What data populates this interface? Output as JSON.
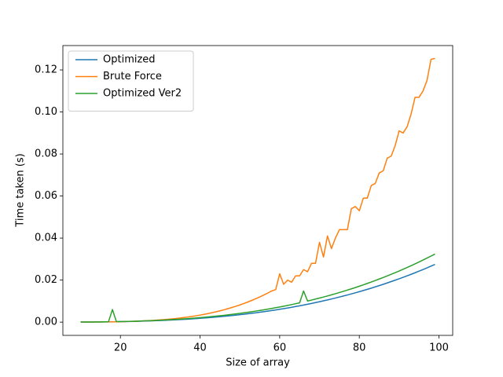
{
  "chart_data": {
    "type": "line",
    "x_label": "Size of array",
    "y_label": "Time taken (s)",
    "x": [
      10,
      11,
      12,
      13,
      14,
      15,
      16,
      17,
      18,
      19,
      20,
      21,
      22,
      23,
      24,
      25,
      26,
      27,
      28,
      29,
      30,
      31,
      32,
      33,
      34,
      35,
      36,
      37,
      38,
      39,
      40,
      41,
      42,
      43,
      44,
      45,
      46,
      47,
      48,
      49,
      50,
      51,
      52,
      53,
      54,
      55,
      56,
      57,
      58,
      59,
      60,
      61,
      62,
      63,
      64,
      65,
      66,
      67,
      68,
      69,
      70,
      71,
      72,
      73,
      74,
      75,
      76,
      77,
      78,
      79,
      80,
      81,
      82,
      83,
      84,
      85,
      86,
      87,
      88,
      89,
      90,
      91,
      92,
      93,
      94,
      95,
      96,
      97,
      98,
      99
    ],
    "series": [
      {
        "name": "Optimized",
        "color": "#1f77b4",
        "values": [
          3e-05,
          4e-05,
          5e-05,
          6e-05,
          8e-05,
          0.0001,
          0.00012,
          0.00014,
          0.00017,
          0.00019,
          0.00023,
          0.00026,
          0.0003,
          0.00034,
          0.00039,
          0.00044,
          0.0005,
          0.00056,
          0.00062,
          0.00069,
          0.00076,
          0.00084,
          0.00093,
          0.00102,
          0.00111,
          0.00121,
          0.00132,
          0.00143,
          0.00155,
          0.00168,
          0.00181,
          0.00195,
          0.0021,
          0.00225,
          0.00241,
          0.00258,
          0.00275,
          0.00294,
          0.00313,
          0.00333,
          0.00354,
          0.00375,
          0.00398,
          0.00421,
          0.00446,
          0.00471,
          0.00497,
          0.00524,
          0.00552,
          0.00581,
          0.00611,
          0.00642,
          0.00674,
          0.00708,
          0.00742,
          0.00777,
          0.00814,
          0.00851,
          0.0089,
          0.0093,
          0.00971,
          0.01013,
          0.01056,
          0.01101,
          0.01147,
          0.01194,
          0.01242,
          0.01292,
          0.01343,
          0.01395,
          0.01449,
          0.01504,
          0.0156,
          0.01618,
          0.01677,
          0.01738,
          0.018,
          0.01864,
          0.01929,
          0.01995,
          0.02063,
          0.02133,
          0.02204,
          0.02276,
          0.0235,
          0.02426,
          0.02504,
          0.02583,
          0.02664,
          0.02746
        ]
      },
      {
        "name": "Brute Force",
        "color": "#ff7f0e",
        "values": [
          1e-05,
          2e-05,
          3e-05,
          4e-05,
          5e-05,
          7e-05,
          9e-05,
          0.00011,
          0.00014,
          0.00017,
          0.00021,
          0.00025,
          0.00031,
          0.00037,
          0.00043,
          0.00051,
          0.0006,
          0.0007,
          0.0008,
          0.00093,
          0.00106,
          0.00121,
          0.00137,
          0.00155,
          0.00175,
          0.00197,
          0.0022,
          0.00246,
          0.00273,
          0.00302,
          0.00335,
          0.0037,
          0.00408,
          0.00448,
          0.00491,
          0.00537,
          0.00587,
          0.0064,
          0.00696,
          0.00756,
          0.00819,
          0.00886,
          0.00958,
          0.01033,
          0.01114,
          0.01199,
          0.01288,
          0.01383,
          0.01483,
          0.0155,
          0.023,
          0.018,
          0.02,
          0.019,
          0.022,
          0.022,
          0.025,
          0.024,
          0.028,
          0.028,
          0.038,
          0.031,
          0.041,
          0.035,
          0.04,
          0.044,
          0.044,
          0.044,
          0.054,
          0.055,
          0.053,
          0.059,
          0.059,
          0.065,
          0.066,
          0.071,
          0.072,
          0.078,
          0.079,
          0.084,
          0.091,
          0.09,
          0.093,
          0.099,
          0.107,
          0.107,
          0.11,
          0.115,
          0.125,
          0.1255
        ]
      },
      {
        "name": "Optimized Ver2",
        "color": "#2ca02c",
        "values": [
          4e-05,
          5e-05,
          6e-05,
          7e-05,
          9e-05,
          0.00012,
          0.00014,
          0.00017,
          0.006,
          0.00022,
          0.00027,
          0.00031,
          0.00035,
          0.0004,
          0.00046,
          0.00052,
          0.00059,
          0.00066,
          0.00073,
          0.00081,
          0.0009,
          0.00099,
          0.0011,
          0.0012,
          0.00131,
          0.00143,
          0.00156,
          0.00169,
          0.00183,
          0.00198,
          0.00214,
          0.0023,
          0.00248,
          0.00266,
          0.00284,
          0.00304,
          0.00325,
          0.00347,
          0.00369,
          0.00393,
          0.00418,
          0.00443,
          0.0047,
          0.00497,
          0.00526,
          0.00556,
          0.00586,
          0.00618,
          0.00651,
          0.00686,
          0.00721,
          0.00758,
          0.00795,
          0.00835,
          0.00876,
          0.00917,
          0.0148,
          0.01004,
          0.0105,
          0.01097,
          0.01146,
          0.01195,
          0.01246,
          0.01299,
          0.01353,
          0.01409,
          0.01466,
          0.01525,
          0.01585,
          0.01646,
          0.0171,
          0.01775,
          0.01841,
          0.01909,
          0.01979,
          0.02051,
          0.02124,
          0.022,
          0.02276,
          0.02354,
          0.02434,
          0.02517,
          0.02601,
          0.02686,
          0.02773,
          0.02863,
          0.02955,
          0.03048,
          0.03144,
          0.0324
        ]
      }
    ],
    "xlim": [
      5.55,
      103.45
    ],
    "ylim": [
      -0.0063,
      0.1316
    ],
    "xticks": [
      20,
      40,
      60,
      80,
      100
    ],
    "yticks": [
      {
        "value": 0,
        "label": "0.00"
      },
      {
        "value": 0.02,
        "label": "0.02"
      },
      {
        "value": 0.04,
        "label": "0.04"
      },
      {
        "value": 0.06,
        "label": "0.06"
      },
      {
        "value": 0.08,
        "label": "0.08"
      },
      {
        "value": 0.1,
        "label": "0.10"
      },
      {
        "value": 0.12,
        "label": "0.12"
      }
    ],
    "legend": "upper left",
    "grid": false
  }
}
